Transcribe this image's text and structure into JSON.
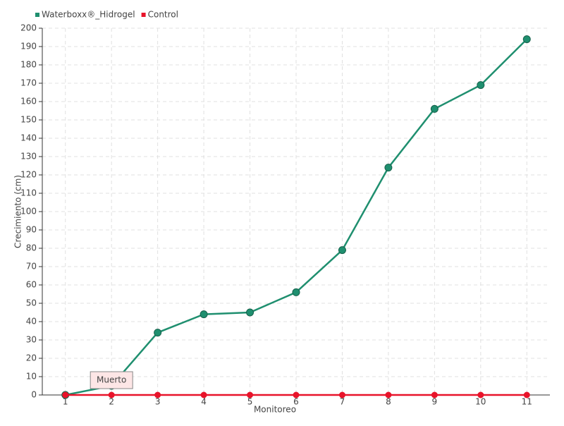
{
  "chart_data": {
    "type": "line",
    "x_label": "Monitoreo",
    "y_label": "Crecimiento (cm)",
    "categories": [
      "1",
      "2",
      "3",
      "4",
      "5",
      "6",
      "7",
      "8",
      "9",
      "10",
      "11"
    ],
    "series": [
      {
        "name": "Waterboxx®_Hidrogel",
        "color": "#1f8f6f",
        "values": [
          0,
          5,
          34,
          44,
          45,
          56,
          79,
          124,
          156,
          169,
          194
        ]
      },
      {
        "name": "Control",
        "color": "#e8132a",
        "values": [
          0,
          0,
          0,
          0,
          0,
          0,
          0,
          0,
          0,
          0,
          0
        ]
      }
    ],
    "annotation": "Muerto",
    "ylim": [
      0,
      200
    ],
    "yticks": [
      0,
      10,
      20,
      30,
      40,
      50,
      60,
      70,
      80,
      90,
      100,
      110,
      120,
      130,
      140,
      150,
      160,
      170,
      180,
      190,
      200
    ],
    "grid": true
  }
}
